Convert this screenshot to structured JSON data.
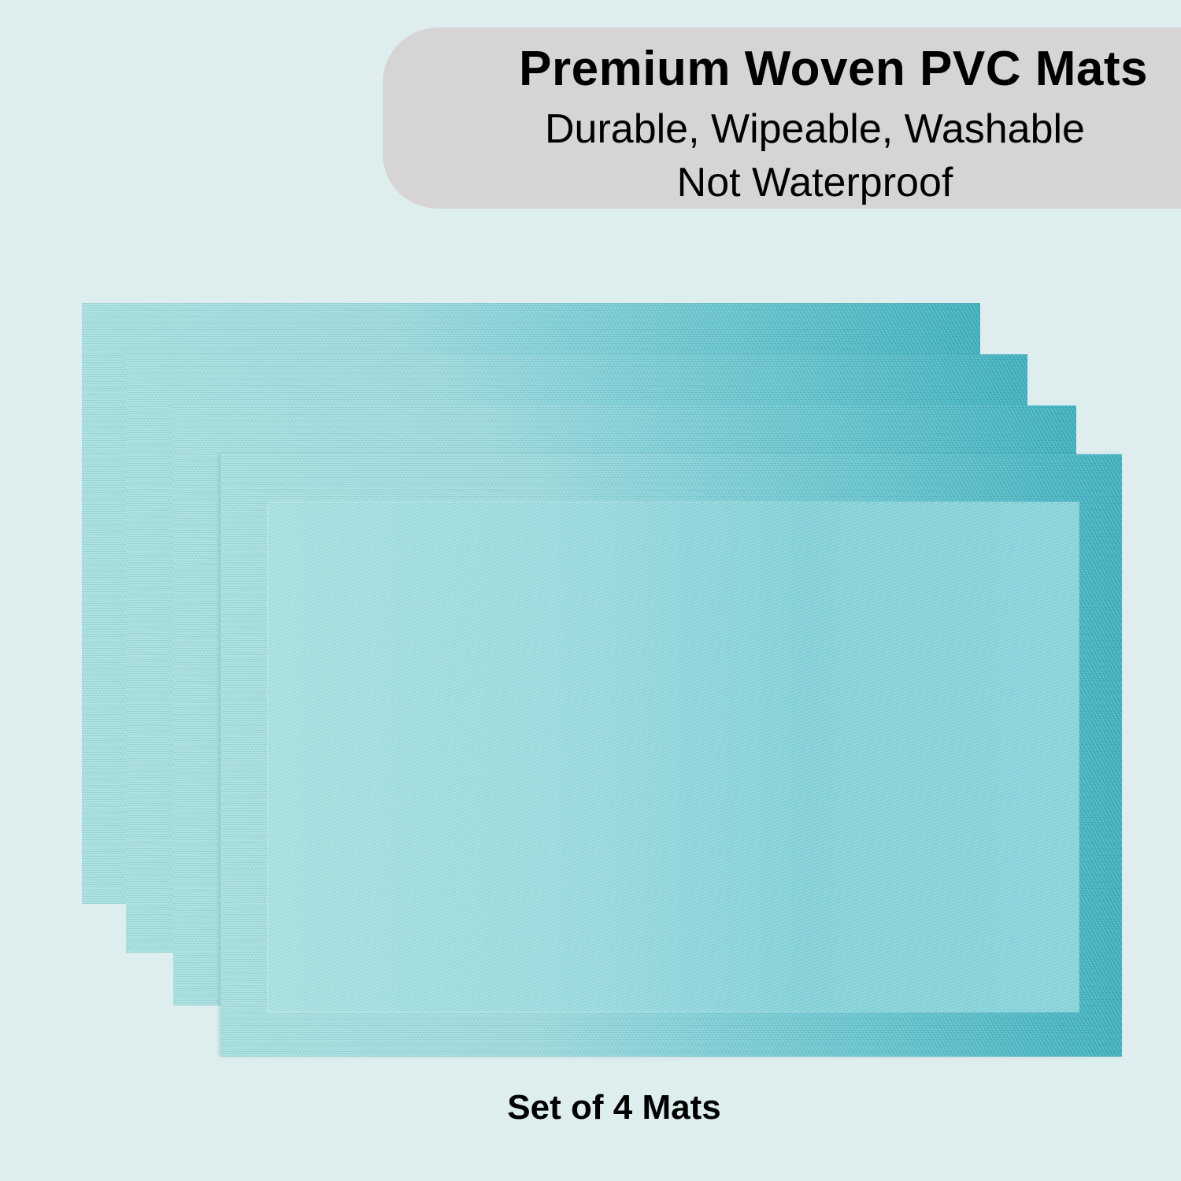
{
  "banner": {
    "title": "Premium Woven PVC Mats",
    "features": "Durable, Wipeable, Washable",
    "note": "Not Waterproof"
  },
  "product": {
    "caption": "Set of 4 Mats",
    "mat_count": 4,
    "colors": {
      "background": "#deeeee",
      "banner": "#d6d4d5",
      "mat_light": "#a9e0e0",
      "mat_dark": "#3fb0be"
    }
  }
}
